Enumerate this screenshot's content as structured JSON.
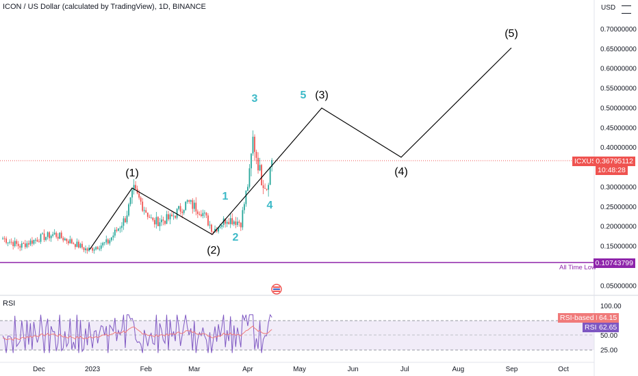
{
  "header": {
    "symbol_title": "ICON / US Dollar (calculated by TradingView), 1D, BINANCE",
    "currency": "USD",
    "rsi_title": "RSI"
  },
  "colors": {
    "up": "#26a69a",
    "down": "#ef5350",
    "ath_line": "#8e24aa",
    "rsi_line": "#7e57c2",
    "rsi_ma": "#f07a7a",
    "rsi_band": "#ede7f6",
    "wave_black": "#000000",
    "wave_teal": "#3bb9c7"
  },
  "price_axis": {
    "labels": [
      "0.70000000",
      "0.65000000",
      "0.60000000",
      "0.55000000",
      "0.50000000",
      "0.45000000",
      "0.40000000",
      "0.30000000",
      "0.25000000",
      "0.20000000",
      "0.15000000",
      "0.05000000"
    ],
    "values": [
      0.7,
      0.65,
      0.6,
      0.55,
      0.5,
      0.45,
      0.4,
      0.3,
      0.25,
      0.2,
      0.15,
      0.05
    ]
  },
  "rsi_axis": {
    "labels": [
      "100.00",
      "50.00",
      "25.00"
    ],
    "values": [
      100,
      50,
      25
    ]
  },
  "time_axis": {
    "labels": [
      "Dec",
      "2023",
      "Feb",
      "Mar",
      "Apr",
      "May",
      "Jun",
      "Jul",
      "Aug",
      "Sep",
      "Oct"
    ]
  },
  "tags": {
    "symbol_name": "ICXUSD",
    "price": "0.36795112",
    "countdown": "10:48:28",
    "ath_low_label": "All Time Low",
    "ath_low_value": "0.10743799",
    "rsi_ma_name": "RSI-based MA",
    "rsi_ma_value": "64.15",
    "rsi_name": "RSI",
    "rsi_value": "62.65"
  },
  "wave_labels": {
    "major": [
      "(1)",
      "(2)",
      "(3)",
      "(4)",
      "(5)"
    ],
    "minor": [
      "1",
      "2",
      "3",
      "4",
      "5"
    ]
  },
  "chart_data": {
    "type": "candlestick",
    "title": "ICON / US Dollar (calculated by TradingView), 1D, BINANCE",
    "ylabel": "USD",
    "ylim": [
      0.0,
      0.76
    ],
    "current_price": 0.36795112,
    "all_time_low": 0.10743799,
    "price_path": {
      "x": [
        "2022-11-10",
        "2022-11-20",
        "2022-12-01",
        "2022-12-10",
        "2022-12-20",
        "2022-12-29",
        "2023-01-10",
        "2023-01-20",
        "2023-01-25",
        "2023-02-05",
        "2023-02-15",
        "2023-02-25",
        "2023-03-05",
        "2023-03-12",
        "2023-03-20",
        "2023-03-28",
        "2023-04-02",
        "2023-04-04",
        "2023-04-06",
        "2023-04-09",
        "2023-04-12",
        "2023-04-15"
      ],
      "close": [
        0.17,
        0.15,
        0.17,
        0.18,
        0.16,
        0.14,
        0.16,
        0.22,
        0.29,
        0.21,
        0.22,
        0.26,
        0.24,
        0.19,
        0.22,
        0.21,
        0.33,
        0.42,
        0.38,
        0.32,
        0.3,
        0.37
      ]
    },
    "elliott_major": {
      "points": [
        {
          "label": "(1)",
          "date": "2023-01-24",
          "price": 0.3
        },
        {
          "label": "(2)",
          "date": "2023-03-10",
          "price": 0.18
        },
        {
          "label": "(3)",
          "date": "2023-05-15",
          "price": 0.5
        },
        {
          "label": "(4)",
          "date": "2023-06-26",
          "price": 0.38
        },
        {
          "label": "(5)",
          "date": "2023-08-30",
          "price": 0.655
        }
      ]
    },
    "elliott_minor": [
      "1",
      "2",
      "3",
      "4",
      "5"
    ],
    "rsi": {
      "series": [
        {
          "name": "RSI",
          "current": 62.65
        },
        {
          "name": "RSI-based MA",
          "current": 64.15
        }
      ],
      "ylim": [
        0,
        100
      ],
      "band": [
        30,
        70
      ]
    }
  }
}
